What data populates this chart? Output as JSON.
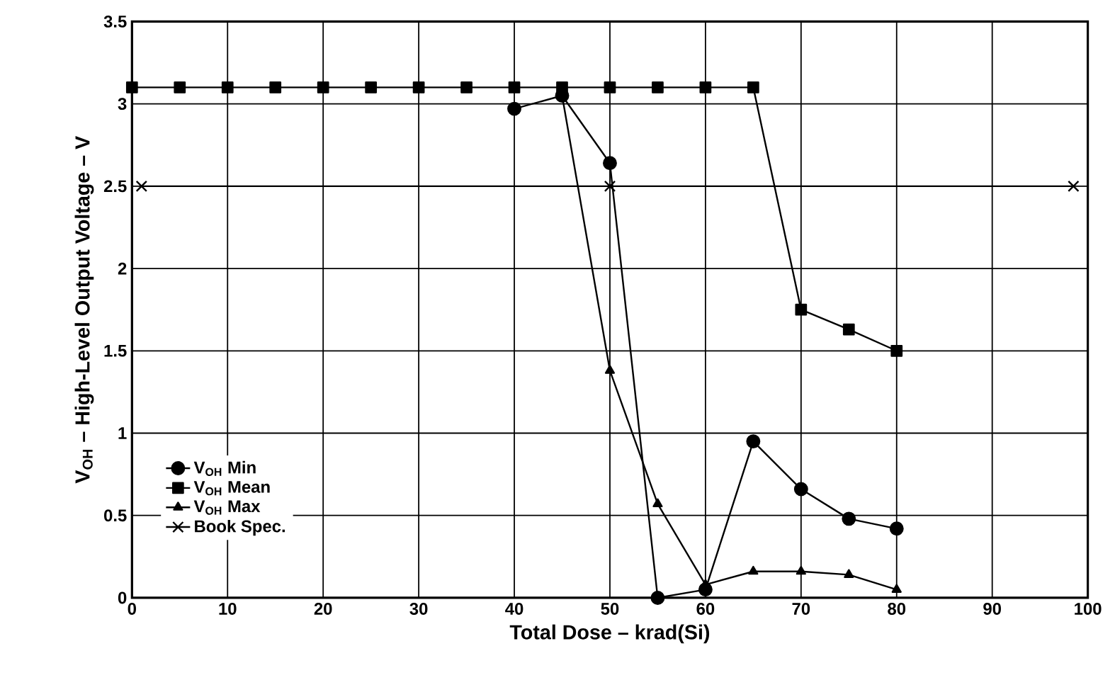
{
  "chart_data": {
    "type": "line",
    "xlabel": "Total Dose – krad(Si)",
    "ylabel": "V$_{OH}$ – High-Level Output Voltage – V",
    "x": [
      0,
      5,
      10,
      15,
      20,
      25,
      30,
      35,
      40,
      45,
      50,
      55,
      60,
      65,
      70,
      75,
      80
    ],
    "series": [
      {
        "name": "V$_{OH}$ Min",
        "color": "#000000",
        "marker": "circle",
        "values": [
          null,
          null,
          null,
          null,
          null,
          null,
          null,
          null,
          2.97,
          3.05,
          2.64,
          0,
          0.05,
          0.95,
          0.66,
          0.48,
          0.42
        ]
      },
      {
        "name": "V$_{OH}$ Mean",
        "color": "#000000",
        "marker": "square",
        "values": [
          3.1,
          3.1,
          3.1,
          3.1,
          3.1,
          3.1,
          3.1,
          3.1,
          3.1,
          3.1,
          3.1,
          3.1,
          3.1,
          3.1,
          1.75,
          1.63,
          1.5
        ]
      },
      {
        "name": "V$_{OH}$ Max",
        "color": "#000000",
        "marker": "triangle",
        "values": [
          null,
          null,
          null,
          null,
          null,
          null,
          null,
          null,
          null,
          3.05,
          1.38,
          0.57,
          0.08,
          0.16,
          0.16,
          0.14,
          0.05
        ]
      },
      {
        "name": "Book Spec.",
        "color": "#000000",
        "marker": "cross",
        "x": [
          1,
          50,
          98.5
        ],
        "values": [
          2.5,
          2.5,
          2.5
        ]
      }
    ],
    "xlim": [
      0,
      100
    ],
    "xticks": [
      0,
      10,
      20,
      30,
      40,
      50,
      60,
      70,
      80,
      90,
      100
    ],
    "ylim": [
      0,
      3.5
    ],
    "yticks": [
      0,
      0.5,
      1,
      1.5,
      2,
      2.5,
      3,
      3.5
    ],
    "grid": true,
    "legend": "bottom left",
    "line_style": "solid"
  }
}
